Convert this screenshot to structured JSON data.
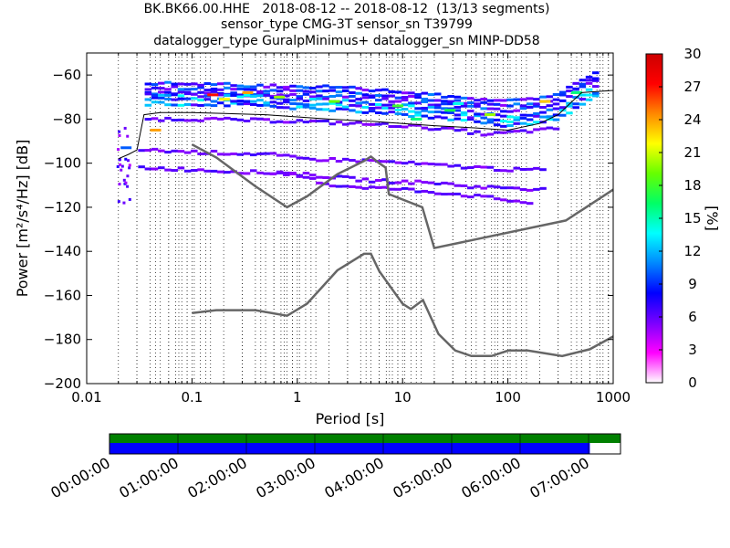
{
  "chart_data": {
    "type": "heatmap",
    "title": [
      "BK.BK66.00.HHE   2018-08-12 -- 2018-08-12  (13/13 segments)",
      "sensor_type CMG-3T sensor_sn T39799",
      "datalogger_type GuralpMinimus+ datalogger_sn MINP-DD58"
    ],
    "xlabel": "Period [s]",
    "ylabel": "Power [m²/s⁴/Hz] [dB]",
    "x_scale": "log",
    "xlim": [
      0.01,
      1000
    ],
    "ylim": [
      -200,
      -50
    ],
    "x_ticks": [
      0.01,
      0.1,
      1,
      10,
      100,
      1000
    ],
    "x_tick_labels": [
      "0.01",
      "0.1",
      "1",
      "10",
      "100",
      "1000"
    ],
    "y_ticks": [
      -200,
      -180,
      -160,
      -140,
      -120,
      -100,
      -80,
      -60
    ],
    "y_tick_labels": [
      "−200",
      "−180",
      "−160",
      "−140",
      "−120",
      "−100",
      "−80",
      "−60"
    ],
    "grid": "dotted vertical lines at period bins",
    "colorbar": {
      "label": "[%]",
      "range": [
        0,
        30
      ],
      "ticks": [
        0,
        3,
        6,
        9,
        12,
        15,
        18,
        21,
        24,
        27,
        30
      ],
      "colors": [
        "#ffffff",
        "#ff00ff",
        "#7a00ff",
        "#0000ff",
        "#0088ff",
        "#00ffff",
        "#00ff66",
        "#66ff00",
        "#ffff00",
        "#ff8800",
        "#ff0000",
        "#cc0000"
      ]
    },
    "reference_curves": {
      "high_noise_model": [
        [
          0.1,
          -91.5
        ],
        [
          0.17,
          -97.4
        ],
        [
          0.4,
          -110.5
        ],
        [
          0.8,
          -120
        ],
        [
          1.24,
          -115
        ],
        [
          2.4,
          -105
        ],
        [
          4.3,
          -99
        ],
        [
          5,
          -97
        ],
        [
          6,
          -100
        ],
        [
          6.9,
          -102
        ],
        [
          7.4,
          -114
        ],
        [
          15.4,
          -120
        ],
        [
          20,
          -138.5
        ],
        [
          354.8,
          -126
        ],
        [
          1000,
          -112
        ]
      ],
      "low_noise_model": [
        [
          0.1,
          -168
        ],
        [
          0.17,
          -166.7
        ],
        [
          0.4,
          -166.7
        ],
        [
          0.8,
          -169.2
        ],
        [
          1.24,
          -163.7
        ],
        [
          2.4,
          -148.6
        ],
        [
          4.3,
          -141.1
        ],
        [
          5,
          -141.1
        ],
        [
          6,
          -149
        ],
        [
          10,
          -163.8
        ],
        [
          12,
          -166.2
        ],
        [
          15.6,
          -162.1
        ],
        [
          21.9,
          -177.5
        ],
        [
          31.6,
          -185
        ],
        [
          45,
          -187.5
        ],
        [
          70,
          -187.5
        ],
        [
          101,
          -185
        ],
        [
          154,
          -185
        ],
        [
          328,
          -187.5
        ],
        [
          600,
          -184.4
        ],
        [
          1000,
          -178.6
        ]
      ],
      "median_psd": [
        [
          0.02,
          -98
        ],
        [
          0.025,
          -96
        ],
        [
          0.03,
          -94
        ],
        [
          0.035,
          -78
        ],
        [
          0.05,
          -77
        ],
        [
          0.1,
          -77
        ],
        [
          0.5,
          -78
        ],
        [
          1,
          -79
        ],
        [
          2,
          -80
        ],
        [
          5,
          -81
        ],
        [
          10,
          -82
        ],
        [
          20,
          -83
        ],
        [
          50,
          -84
        ],
        [
          100,
          -85
        ],
        [
          200,
          -82
        ],
        [
          300,
          -78
        ],
        [
          500,
          -68
        ],
        [
          1000,
          -67
        ]
      ]
    },
    "psd_bands": [
      {
        "name": "upper-spread",
        "points": [
          [
            0.035,
            -66
          ],
          [
            0.1,
            -66
          ],
          [
            0.5,
            -67
          ],
          [
            1,
            -67
          ],
          [
            3,
            -68
          ],
          [
            10,
            -70
          ],
          [
            30,
            -72
          ],
          [
            100,
            -74
          ],
          [
            200,
            -72
          ],
          [
            300,
            -70
          ],
          [
            500,
            -63
          ],
          [
            700,
            -60
          ]
        ]
      },
      {
        "name": "main-band",
        "points": [
          [
            0.035,
            -71
          ],
          [
            0.1,
            -71
          ],
          [
            0.5,
            -72
          ],
          [
            1,
            -73
          ],
          [
            3,
            -74
          ],
          [
            10,
            -76
          ],
          [
            30,
            -78
          ],
          [
            100,
            -81
          ],
          [
            200,
            -79
          ],
          [
            300,
            -77
          ],
          [
            500,
            -70
          ],
          [
            700,
            -67
          ]
        ]
      },
      {
        "name": "lower-band-1",
        "points": [
          [
            0.035,
            -80
          ],
          [
            0.1,
            -80
          ],
          [
            1,
            -81
          ],
          [
            10,
            -83
          ],
          [
            30,
            -85
          ],
          [
            60,
            -87
          ],
          [
            100,
            -86
          ],
          [
            200,
            -85
          ],
          [
            300,
            -84
          ]
        ]
      },
      {
        "name": "lower-band-2",
        "points": [
          [
            0.03,
            -94
          ],
          [
            0.1,
            -95
          ],
          [
            0.5,
            -96
          ],
          [
            1,
            -98
          ],
          [
            5,
            -99
          ],
          [
            20,
            -101
          ],
          [
            50,
            -102
          ],
          [
            100,
            -103
          ],
          [
            200,
            -103
          ]
        ]
      },
      {
        "name": "lower-band-3",
        "points": [
          [
            0.03,
            -102
          ],
          [
            0.1,
            -103
          ],
          [
            1,
            -105
          ],
          [
            5,
            -108
          ],
          [
            20,
            -109
          ],
          [
            50,
            -111
          ],
          [
            100,
            -111
          ],
          [
            200,
            -112
          ]
        ]
      },
      {
        "name": "lower-band-4",
        "points": [
          [
            0.5,
            -104
          ],
          [
            1,
            -106
          ],
          [
            2,
            -110
          ],
          [
            10,
            -112
          ],
          [
            30,
            -114
          ],
          [
            70,
            -116
          ],
          [
            100,
            -117
          ],
          [
            150,
            -118
          ]
        ]
      }
    ],
    "hot_cells": [
      [
        0.14,
        -69,
        27
      ],
      [
        0.3,
        -68,
        24
      ],
      [
        0.18,
        -71,
        22
      ],
      [
        0.6,
        -70,
        20
      ],
      [
        2,
        -72,
        19
      ],
      [
        8,
        -74,
        18
      ],
      [
        25,
        -76,
        17
      ],
      [
        60,
        -78,
        20
      ],
      [
        0.04,
        -85,
        24
      ],
      [
        0.021,
        -93,
        10
      ],
      [
        200,
        -72,
        23
      ],
      [
        400,
        -68,
        16
      ],
      [
        30,
        -73,
        14
      ],
      [
        12,
        -80,
        16
      ]
    ]
  },
  "timeline": {
    "tick_labels": [
      "00:00:00",
      "01:00:00",
      "02:00:00",
      "03:00:00",
      "04:00:00",
      "05:00:00",
      "06:00:00",
      "07:00:00"
    ],
    "data_coverage_fraction": 0.94,
    "coverage_color": "#0000ff",
    "segment_color": "#008000"
  }
}
